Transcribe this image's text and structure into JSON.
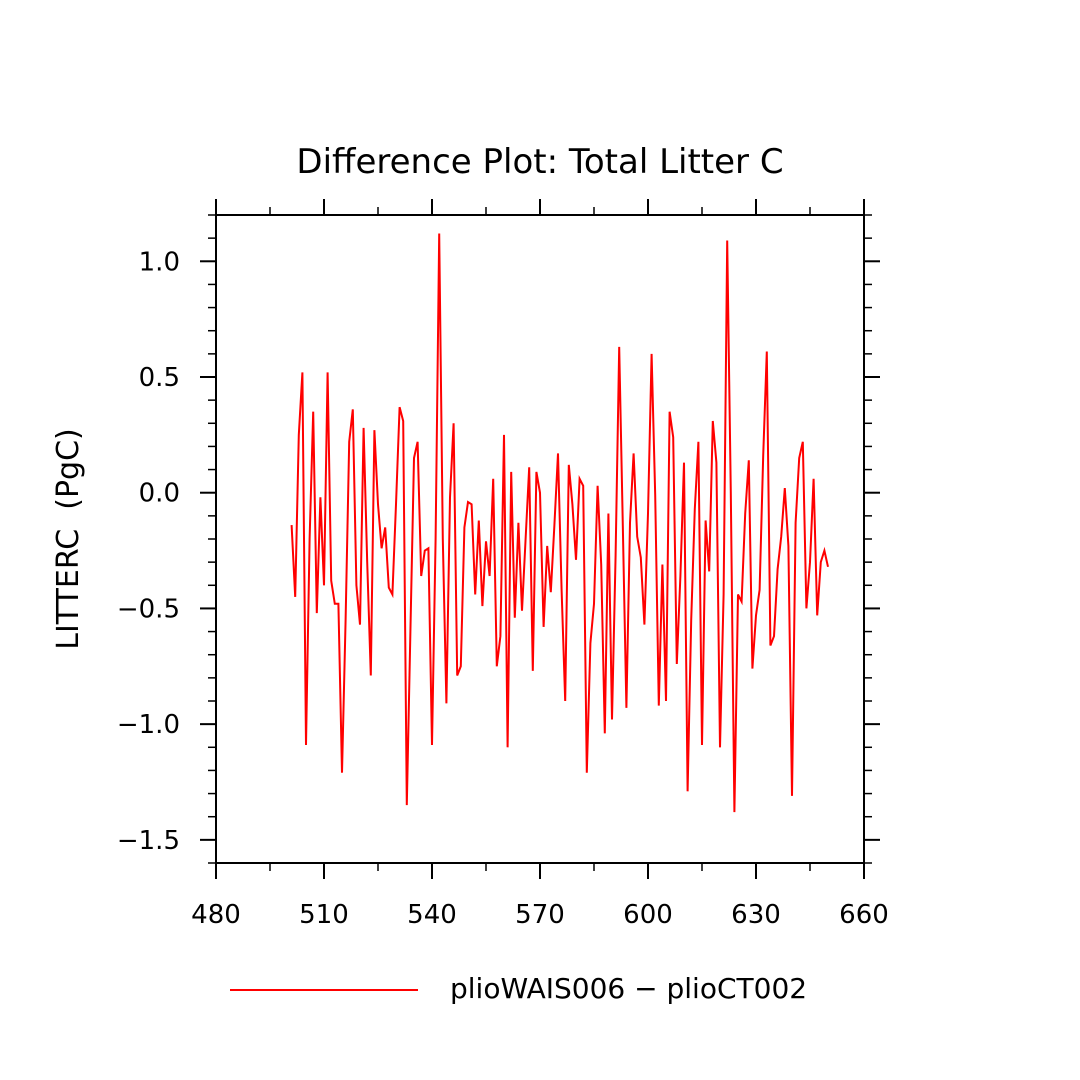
{
  "chart_data": {
    "type": "line",
    "title": "Difference Plot: Total Litter C",
    "xlabel": "",
    "ylabel": "LITTERC  (PgC)",
    "xlim": [
      480,
      660
    ],
    "ylim": [
      -1.6,
      1.2
    ],
    "x_ticks": [
      480,
      510,
      540,
      570,
      600,
      630,
      660
    ],
    "x_tick_labels": [
      "480",
      "510",
      "540",
      "570",
      "600",
      "630",
      "660"
    ],
    "y_ticks": [
      -1.5,
      -1.0,
      -0.5,
      0.0,
      0.5,
      1.0
    ],
    "y_tick_labels": [
      "−1.5",
      "−1.0",
      "−0.5",
      "0.0",
      "0.5",
      "1.0"
    ],
    "grid": false,
    "legend_position": "bottom",
    "series": [
      {
        "name": "plioWAIS006 − plioCT002",
        "color": "#ff0000",
        "x_start": 501,
        "x_step": 1,
        "values": [
          -0.14,
          -0.45,
          0.25,
          0.52,
          -1.09,
          -0.2,
          0.35,
          -0.52,
          -0.02,
          -0.4,
          0.52,
          -0.38,
          -0.48,
          -0.48,
          -1.21,
          -0.55,
          0.22,
          0.36,
          -0.4,
          -0.57,
          0.28,
          -0.3,
          -0.79,
          0.27,
          -0.05,
          -0.24,
          -0.15,
          -0.41,
          -0.44,
          -0.05,
          0.37,
          0.31,
          -1.35,
          -0.6,
          0.15,
          0.22,
          -0.36,
          -0.25,
          -0.24,
          -1.09,
          -0.2,
          1.12,
          -0.2,
          -0.91,
          -0.02,
          0.3,
          -0.79,
          -0.75,
          -0.15,
          -0.04,
          -0.05,
          -0.44,
          -0.12,
          -0.49,
          -0.21,
          -0.36,
          0.06,
          -0.75,
          -0.62,
          0.25,
          -1.1,
          0.09,
          -0.54,
          -0.13,
          -0.51,
          -0.2,
          0.11,
          -0.77,
          0.09,
          0.0,
          -0.58,
          -0.23,
          -0.43,
          -0.14,
          0.17,
          -0.42,
          -0.9,
          0.12,
          -0.05,
          -0.29,
          0.06,
          0.03,
          -1.21,
          -0.65,
          -0.48,
          0.03,
          -0.31,
          -1.04,
          -0.09,
          -0.98,
          -0.27,
          0.63,
          -0.14,
          -0.93,
          -0.13,
          0.17,
          -0.19,
          -0.28,
          -0.57,
          -0.09,
          0.6,
          -0.01,
          -0.92,
          -0.31,
          -0.9,
          0.35,
          0.24,
          -0.74,
          -0.36,
          0.13,
          -1.29,
          -0.55,
          -0.07,
          0.22,
          -1.09,
          -0.12,
          -0.34,
          0.31,
          0.13,
          -1.1,
          -0.44,
          1.09,
          0.0,
          -1.38,
          -0.44,
          -0.47,
          -0.09,
          0.14,
          -0.76,
          -0.53,
          -0.42,
          0.16,
          0.61,
          -0.66,
          -0.62,
          -0.33,
          -0.19,
          0.02,
          -0.23,
          -1.31,
          -0.13,
          0.15,
          0.22,
          -0.5,
          -0.3,
          0.06,
          -0.53,
          -0.3,
          -0.25,
          -0.32
        ]
      }
    ]
  }
}
